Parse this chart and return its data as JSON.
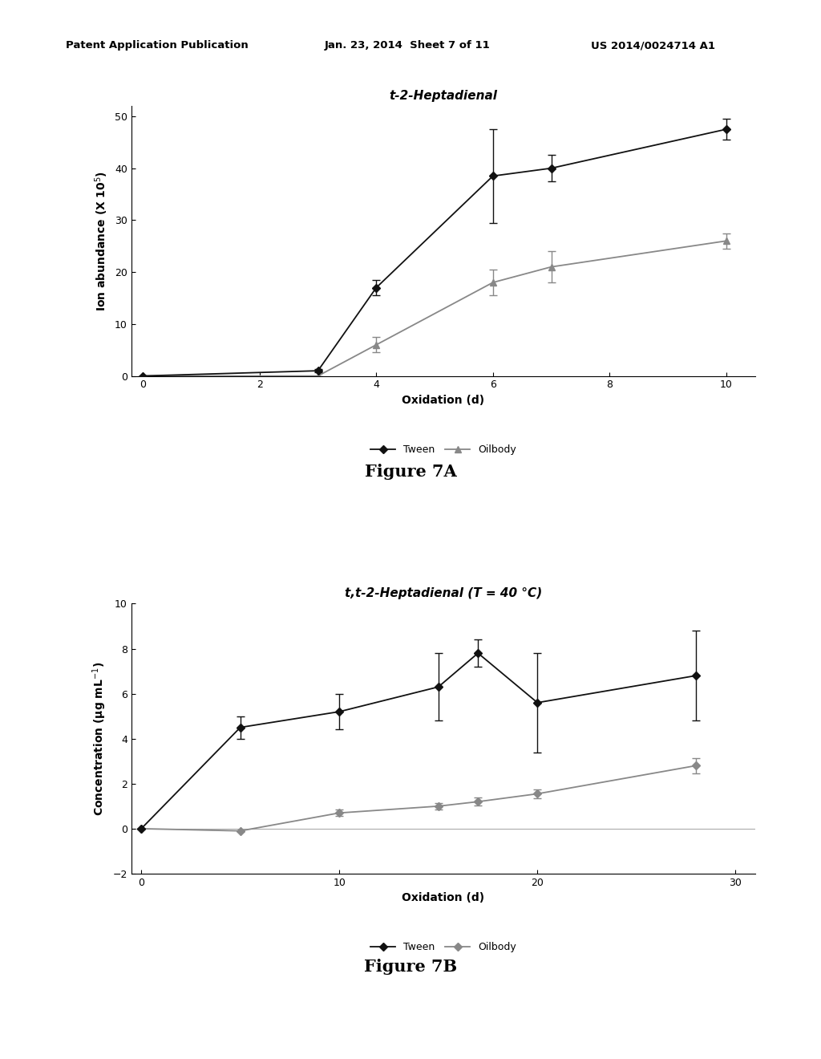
{
  "header_left": "Patent Application Publication",
  "header_mid": "Jan. 23, 2014  Sheet 7 of 11",
  "header_right": "US 2014/0024714 A1",
  "fig7A": {
    "title": "t-2-Heptadienal",
    "xlabel": "Oxidation (d)",
    "xlim": [
      -0.2,
      10.5
    ],
    "ylim": [
      0,
      52
    ],
    "xticks": [
      0,
      2,
      4,
      6,
      8,
      10
    ],
    "yticks": [
      0,
      10,
      20,
      30,
      40,
      50
    ],
    "tween_x": [
      0,
      3,
      4,
      6,
      7,
      10
    ],
    "tween_y": [
      0,
      1,
      17,
      38.5,
      40,
      47.5
    ],
    "tween_yerr": [
      0,
      0.3,
      1.5,
      9,
      2.5,
      2
    ],
    "oilbody_x": [
      0,
      3,
      4,
      6,
      7,
      10
    ],
    "oilbody_y": [
      0,
      0,
      6,
      18,
      21,
      26
    ],
    "oilbody_yerr": [
      0,
      0,
      1.5,
      2.5,
      3,
      1.5
    ],
    "tween_color": "#111111",
    "oilbody_color": "#888888",
    "legend_labels": [
      "Tween",
      "Oilbody"
    ],
    "figure_label": "Figure 7A"
  },
  "fig7B": {
    "title": "t,t-2-Heptadienal (T = 40 °C)",
    "xlabel": "Oxidation (d)",
    "xlim": [
      -0.5,
      31
    ],
    "ylim": [
      -2,
      10
    ],
    "xticks": [
      0,
      10,
      20,
      30
    ],
    "yticks": [
      -2,
      0,
      2,
      4,
      6,
      8,
      10
    ],
    "tween_x": [
      0,
      5,
      10,
      15,
      17,
      20,
      28
    ],
    "tween_y": [
      0,
      4.5,
      5.2,
      6.3,
      7.8,
      5.6,
      6.8
    ],
    "tween_yerr": [
      0,
      0.5,
      0.8,
      1.5,
      0.6,
      2.2,
      2.0
    ],
    "oilbody_x": [
      0,
      5,
      10,
      15,
      17,
      20,
      28
    ],
    "oilbody_y": [
      0,
      -0.1,
      0.7,
      1.0,
      1.2,
      1.55,
      2.8
    ],
    "oilbody_yerr": [
      0,
      0,
      0.15,
      0.15,
      0.18,
      0.2,
      0.35
    ],
    "tween_color": "#111111",
    "oilbody_color": "#888888",
    "legend_labels": [
      "Tween",
      "Oilbody"
    ],
    "figure_label": "Figure 7B"
  }
}
